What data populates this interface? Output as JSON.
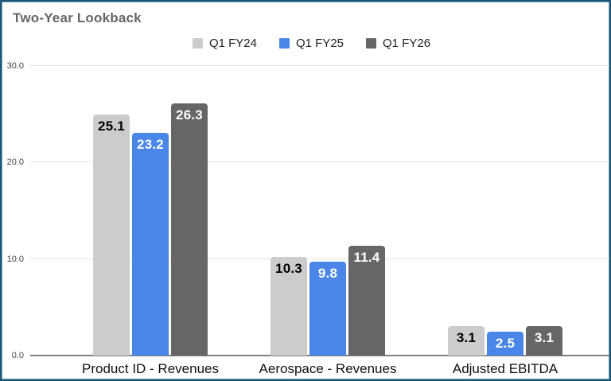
{
  "frame": {
    "border_color": "#1e5878",
    "background": "#ffffff"
  },
  "chart_data": {
    "type": "bar",
    "title": "Two-Year Lookback",
    "title_color": "#666666",
    "categories": [
      "Product ID - Revenues",
      "Aerospace - Revenues",
      "Adjusted EBITDA"
    ],
    "series": [
      {
        "name": "Q1 FY24",
        "color": "#cccccc",
        "label_color": "#000000",
        "values": [
          25.1,
          10.3,
          3.1
        ]
      },
      {
        "name": "Q1 FY25",
        "color": "#4a86e8",
        "label_color": "#ffffff",
        "values": [
          23.2,
          9.8,
          2.5
        ]
      },
      {
        "name": "Q1 FY26",
        "color": "#666666",
        "label_color": "#ffffff",
        "values": [
          26.3,
          11.4,
          3.1
        ]
      }
    ],
    "data_labels": [
      [
        "25.1",
        "23.2",
        "26.3"
      ],
      [
        "10.3",
        "9.8",
        "11.4"
      ],
      [
        "3.1",
        "2.5",
        "3.1"
      ]
    ],
    "xlabel": "",
    "ylabel": "",
    "y_axis": {
      "min": 0,
      "max": 30,
      "ticks": [
        "0.0",
        "10.0",
        "20.0",
        "30.0"
      ]
    },
    "grid": true,
    "gridline_color": "#e4e4e4",
    "axis_line_color": "#808080",
    "legend_position": "top-center"
  }
}
